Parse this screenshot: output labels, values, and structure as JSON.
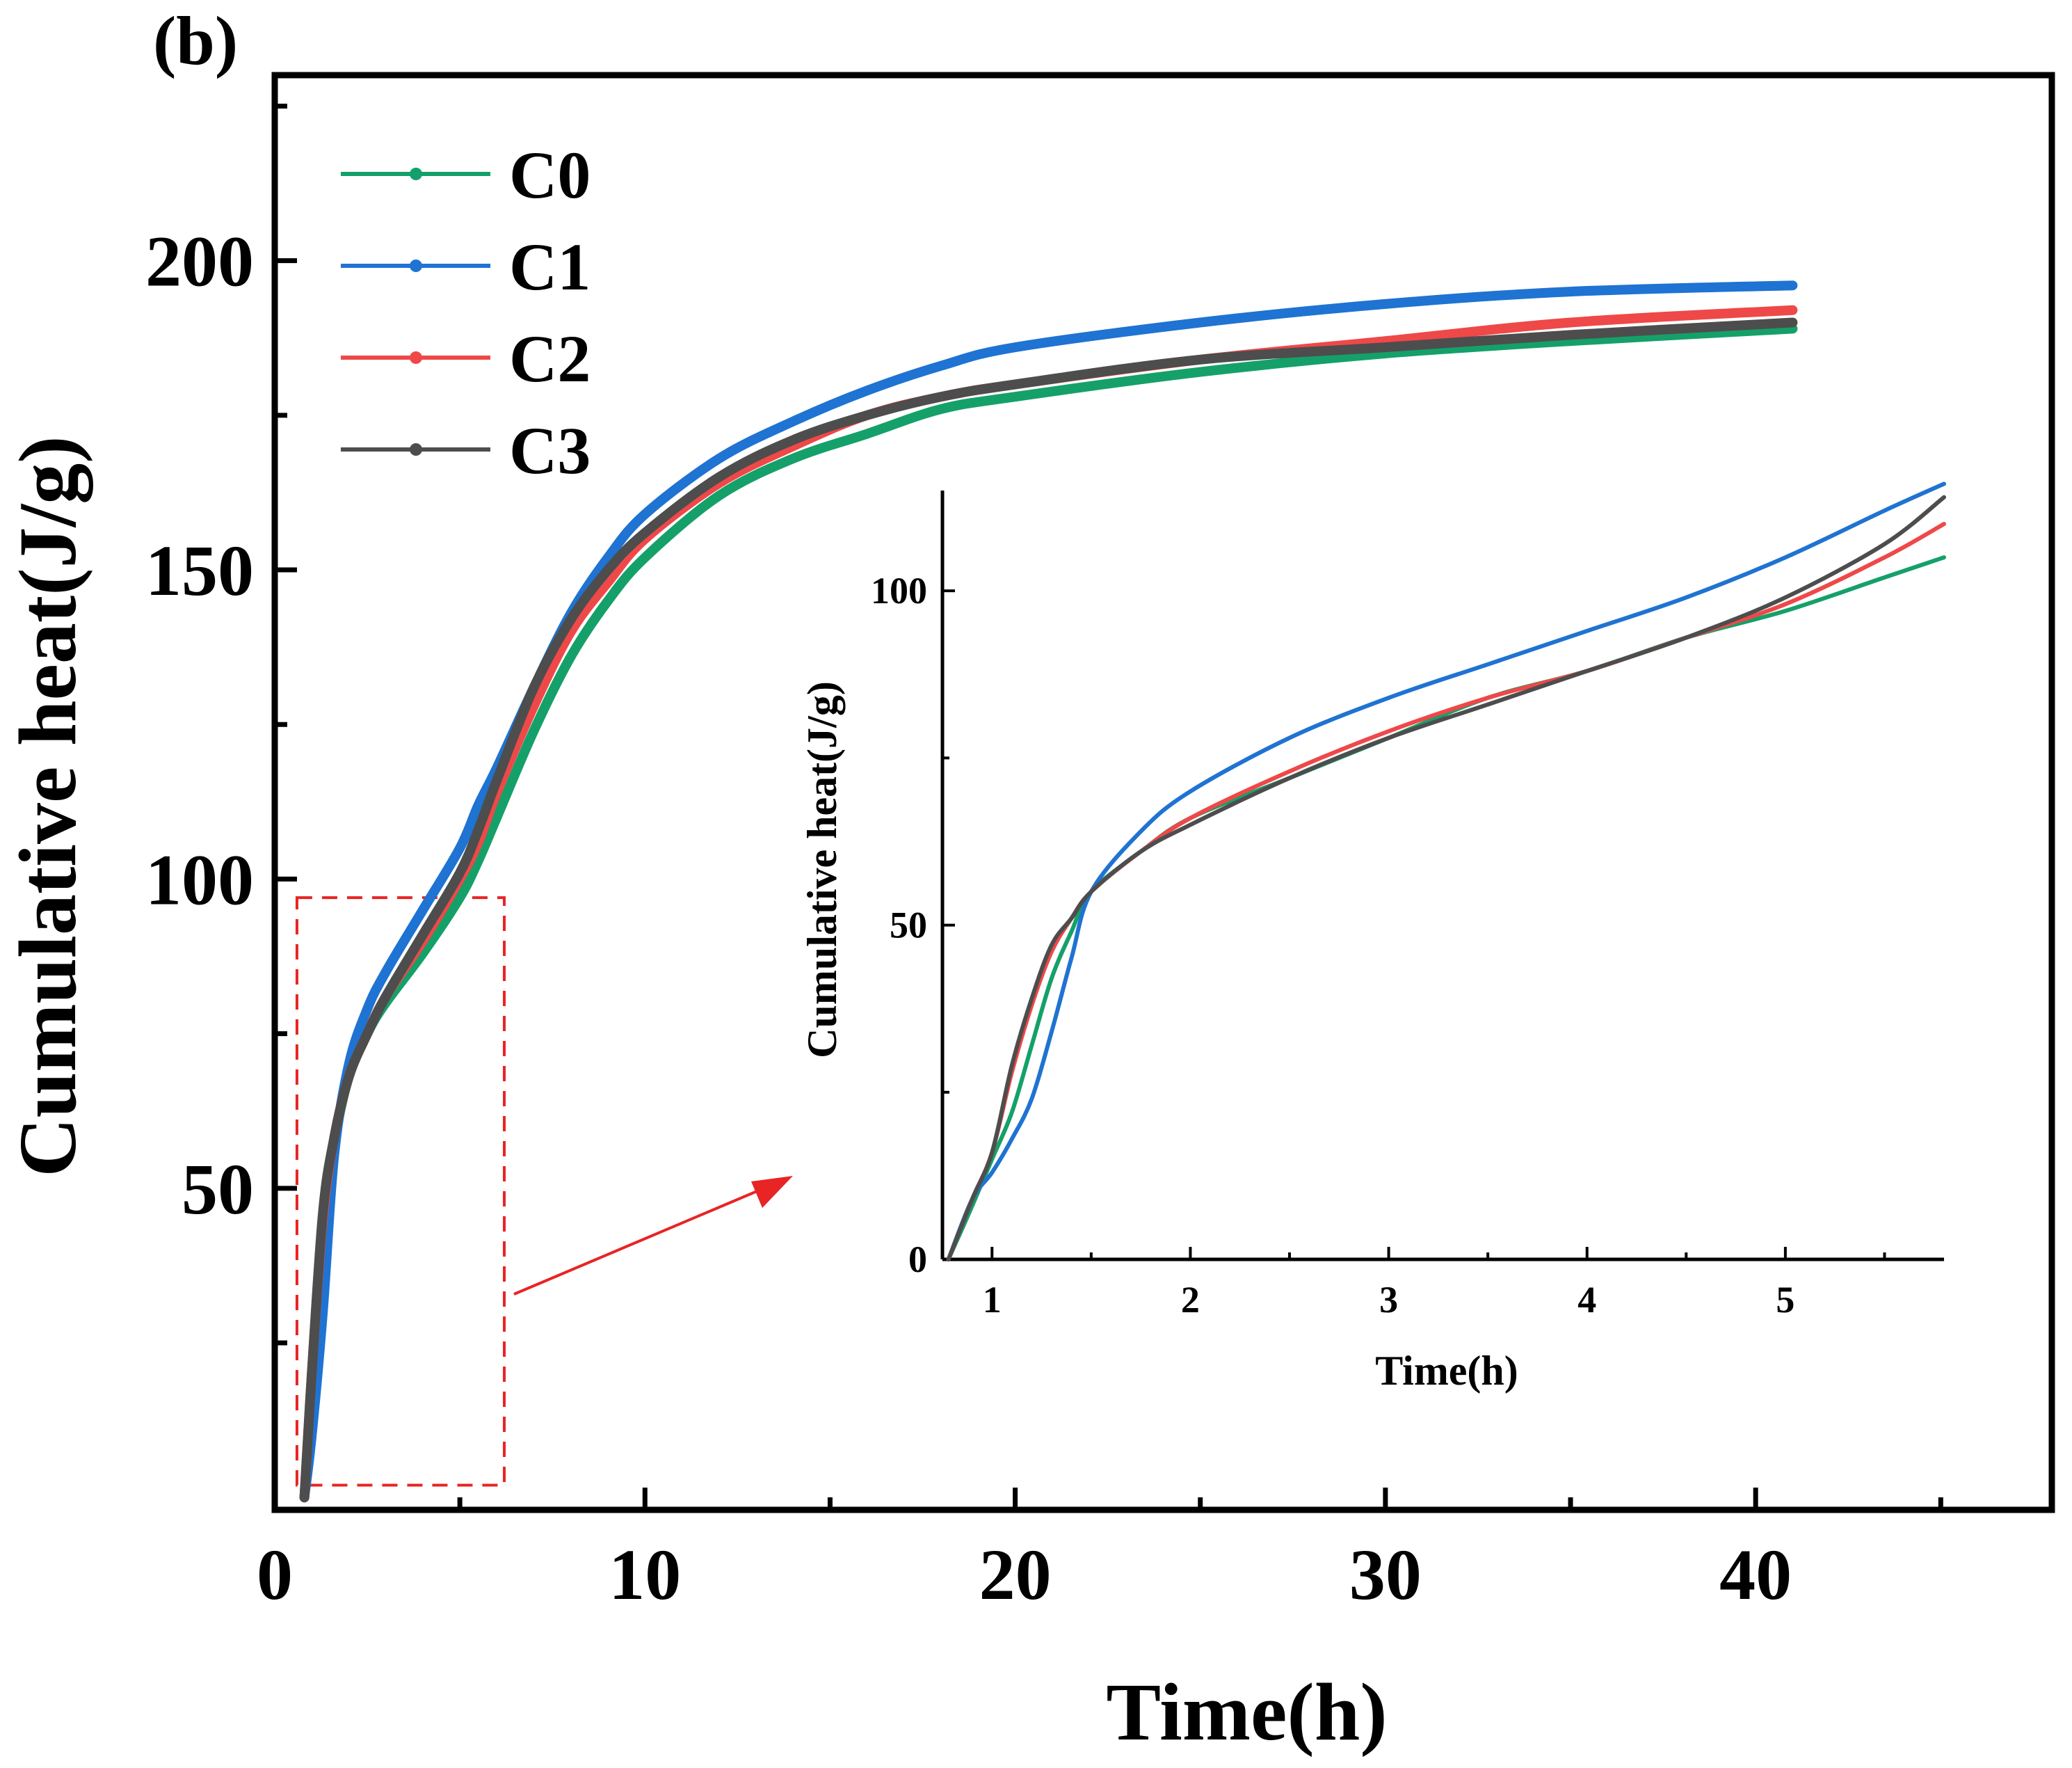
{
  "panel_label": "(b)",
  "colors": {
    "C0": "#15a06a",
    "C1": "#1f73d2",
    "C2": "#ef4848",
    "C3": "#4d4d4d",
    "box": "#e82424",
    "axis": "#000000"
  },
  "chart_data": [
    {
      "type": "line",
      "role": "main",
      "title": "",
      "xlabel": "Time(h)",
      "ylabel": "Cumulative heat(J/g)",
      "xlim": [
        0,
        48
      ],
      "ylim": [
        -2,
        230
      ],
      "xticks": [
        0,
        10,
        20,
        30,
        40
      ],
      "yticks": [
        50,
        100,
        150,
        200
      ],
      "grid": false,
      "legend_position": "top-left",
      "legend": [
        "C0",
        "C1",
        "C2",
        "C3"
      ],
      "series": [
        {
          "name": "C0",
          "x": [
            0.8,
            1.0,
            1.3,
            1.6,
            2.0,
            2.5,
            3.0,
            4.0,
            5.0,
            5.5,
            6.0,
            7.0,
            8.0,
            9.0,
            10.0,
            12.0,
            14.0,
            16.0,
            18.0,
            20.0,
            25.0,
            30.0,
            35.0,
            41.0
          ],
          "y": [
            0,
            17,
            42,
            57,
            68,
            75,
            80,
            88,
            97,
            103,
            110,
            124,
            136,
            145,
            152,
            162,
            168,
            172,
            176,
            178,
            182,
            185,
            187,
            189
          ]
        },
        {
          "name": "C1",
          "x": [
            0.8,
            1.0,
            1.3,
            1.6,
            2.0,
            2.5,
            3.0,
            4.0,
            5.0,
            5.5,
            6.0,
            7.0,
            8.0,
            9.0,
            10.0,
            12.0,
            14.0,
            16.0,
            18.0,
            20.0,
            25.0,
            30.0,
            35.0,
            41.0
          ],
          "y": [
            0,
            10,
            30,
            55,
            70,
            79,
            85,
            95,
            105,
            112,
            118,
            131,
            143,
            152,
            159,
            168,
            174,
            179,
            183,
            186,
            190,
            193,
            195,
            196
          ]
        },
        {
          "name": "C2",
          "x": [
            0.8,
            1.0,
            1.3,
            1.6,
            2.0,
            2.5,
            3.0,
            4.0,
            5.0,
            5.5,
            6.0,
            7.0,
            8.0,
            9.0,
            10.0,
            12.0,
            14.0,
            16.0,
            18.0,
            20.0,
            25.0,
            30.0,
            35.0,
            41.0
          ],
          "y": [
            0,
            20,
            45,
            58,
            68,
            75,
            81,
            90,
            100,
            106,
            114,
            128,
            140,
            148,
            155,
            164,
            170,
            175,
            178,
            180,
            184,
            187,
            190,
            192
          ]
        },
        {
          "name": "C3",
          "x": [
            0.8,
            1.0,
            1.3,
            1.6,
            2.0,
            2.5,
            3.0,
            4.0,
            5.0,
            5.5,
            6.0,
            7.0,
            8.0,
            9.0,
            10.0,
            12.0,
            14.0,
            16.0,
            18.0,
            20.0,
            25.0,
            30.0,
            35.0,
            41.0
          ],
          "y": [
            0,
            20,
            46,
            58,
            68,
            75,
            81,
            91,
            101,
            108,
            116,
            131,
            142,
            150,
            156,
            165,
            171,
            175,
            178,
            180,
            184,
            186,
            188,
            190
          ]
        }
      ],
      "highlight_region": {
        "x": [
          0.6,
          6.2
        ],
        "y": [
          2,
          97
        ]
      }
    },
    {
      "type": "line",
      "role": "inset",
      "title": "",
      "xlabel": "Time(h)",
      "ylabel": "Cumulative heat(J/g)",
      "xlim": [
        0.75,
        5.8
      ],
      "ylim": [
        0,
        115
      ],
      "xticks": [
        1,
        2,
        3,
        4,
        5
      ],
      "yticks": [
        0,
        50,
        100
      ],
      "grid": false,
      "series": [
        {
          "name": "C0",
          "x": [
            0.78,
            0.9,
            1.0,
            1.1,
            1.2,
            1.3,
            1.4,
            1.5,
            1.75,
            2.0,
            2.5,
            3.0,
            3.5,
            4.0,
            4.5,
            5.0,
            5.5,
            5.8
          ],
          "y": [
            0,
            8,
            15,
            22,
            32,
            42,
            49,
            55,
            61,
            66,
            72,
            78,
            84,
            88,
            93,
            97,
            102,
            105
          ]
        },
        {
          "name": "C1",
          "x": [
            0.78,
            0.9,
            1.0,
            1.1,
            1.2,
            1.3,
            1.4,
            1.5,
            1.75,
            2.0,
            2.5,
            3.0,
            3.5,
            4.0,
            4.5,
            5.0,
            5.5,
            5.8
          ],
          "y": [
            0,
            9,
            13,
            18,
            24,
            34,
            45,
            55,
            64,
            70,
            78,
            84,
            89,
            94,
            99,
            105,
            112,
            116
          ]
        },
        {
          "name": "C2",
          "x": [
            0.78,
            0.9,
            1.0,
            1.1,
            1.2,
            1.3,
            1.4,
            1.5,
            1.75,
            2.0,
            2.5,
            3.0,
            3.5,
            4.0,
            4.5,
            5.0,
            5.5,
            5.8
          ],
          "y": [
            0,
            9,
            16,
            28,
            38,
            46,
            51,
            55,
            61,
            66,
            73,
            79,
            84,
            88,
            93,
            98,
            105,
            110
          ]
        },
        {
          "name": "C3",
          "x": [
            0.78,
            0.9,
            1.0,
            1.1,
            1.2,
            1.3,
            1.4,
            1.5,
            1.75,
            2.0,
            2.5,
            3.0,
            3.5,
            4.0,
            4.5,
            5.0,
            5.5,
            5.8
          ],
          "y": [
            0,
            9,
            16,
            29,
            39,
            47,
            51,
            55,
            61,
            65,
            72,
            78,
            83,
            88,
            93,
            99,
            107,
            114
          ]
        }
      ]
    }
  ]
}
